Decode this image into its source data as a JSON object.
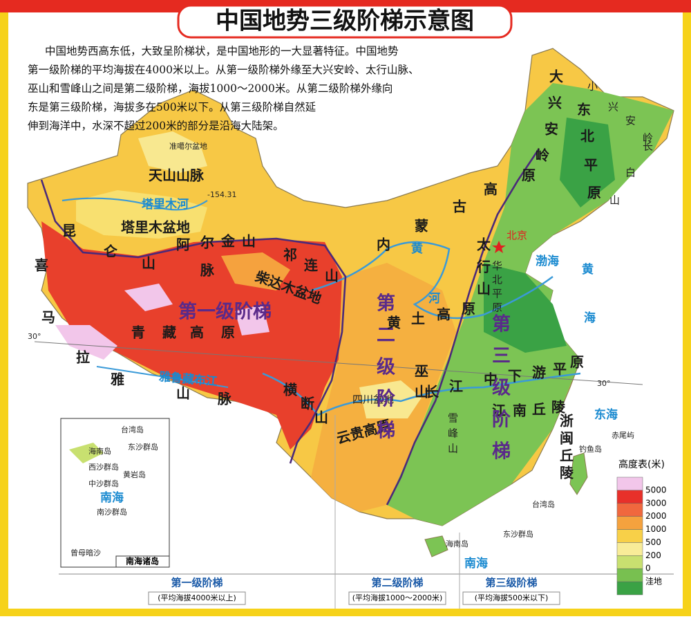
{
  "header": {
    "title": "中国地势三级阶梯示意图"
  },
  "intro": [
    "中国地势西高东低，大致呈阶梯状，是中国地形的一大显著特征。中国地势",
    "第一级阶梯的平均海拔在4000米以上。从第一级阶梯外缘至大兴安岭、太行山脉、",
    "巫山和雪峰山之间是第二级阶梯，海拔1000～2000米。从第二级阶梯外缘向",
    "东是第三级阶梯，海拔多在500米以下。从第三级阶梯自然延",
    "伸到海洋中，水深不超过200米的部分是沿海大陆架。"
  ],
  "map_labels": [
    "准噶尔盆地",
    "天山山脉",
    "-154.31",
    "塔里木河",
    "塔里木盆地",
    "昆仑山",
    "阿尔金山脉",
    "柴达木盆地",
    "祁连山",
    "第一级阶梯",
    "青藏高原",
    "喜马拉雅山脉",
    "雅鲁藏布江",
    "横断山",
    "四川盆地",
    "云贵高原",
    "第二级阶梯",
    "黄河",
    "黄土高原",
    "内蒙古高原",
    "大兴安岭",
    "小兴安岭",
    "东北平原",
    "长白山",
    "北京",
    "太行山",
    "华北平原",
    "渤海",
    "黄海",
    "东海",
    "巫山",
    "长江中下游平原",
    "江南丘陵",
    "浙闽丘陵",
    "雪峰山",
    "第三级阶梯",
    "钓鱼岛",
    "赤尾屿",
    "台湾岛",
    "海南岛",
    "东沙群岛",
    "南海",
    "30°",
    "30°"
  ],
  "inset": {
    "title": "南海诸岛",
    "labels": [
      "台湾岛",
      "东沙群岛",
      "海南岛",
      "西沙群岛",
      "黄岩岛",
      "中沙群岛",
      "南海",
      "南沙群岛",
      "曾母暗沙"
    ]
  },
  "legend": {
    "title": "高度表(米)",
    "labels": [
      "5000",
      "3000",
      "2000",
      "1000",
      "500",
      "200",
      "0",
      "洼地"
    ],
    "colors": [
      "#f2c6ea",
      "#e8302a",
      "#f0683e",
      "#f5a23e",
      "#f8d048",
      "#f8ec98",
      "#c8e070",
      "#78c050",
      "#3aa245"
    ]
  },
  "steps": [
    {
      "name": "第一级阶梯",
      "note": "(平均海拔4000米以上)"
    },
    {
      "name": "第二级阶梯",
      "note": "(平均海拔1000～2000米)"
    },
    {
      "name": "第三级阶梯",
      "note": "(平均海拔500米以下)"
    }
  ]
}
